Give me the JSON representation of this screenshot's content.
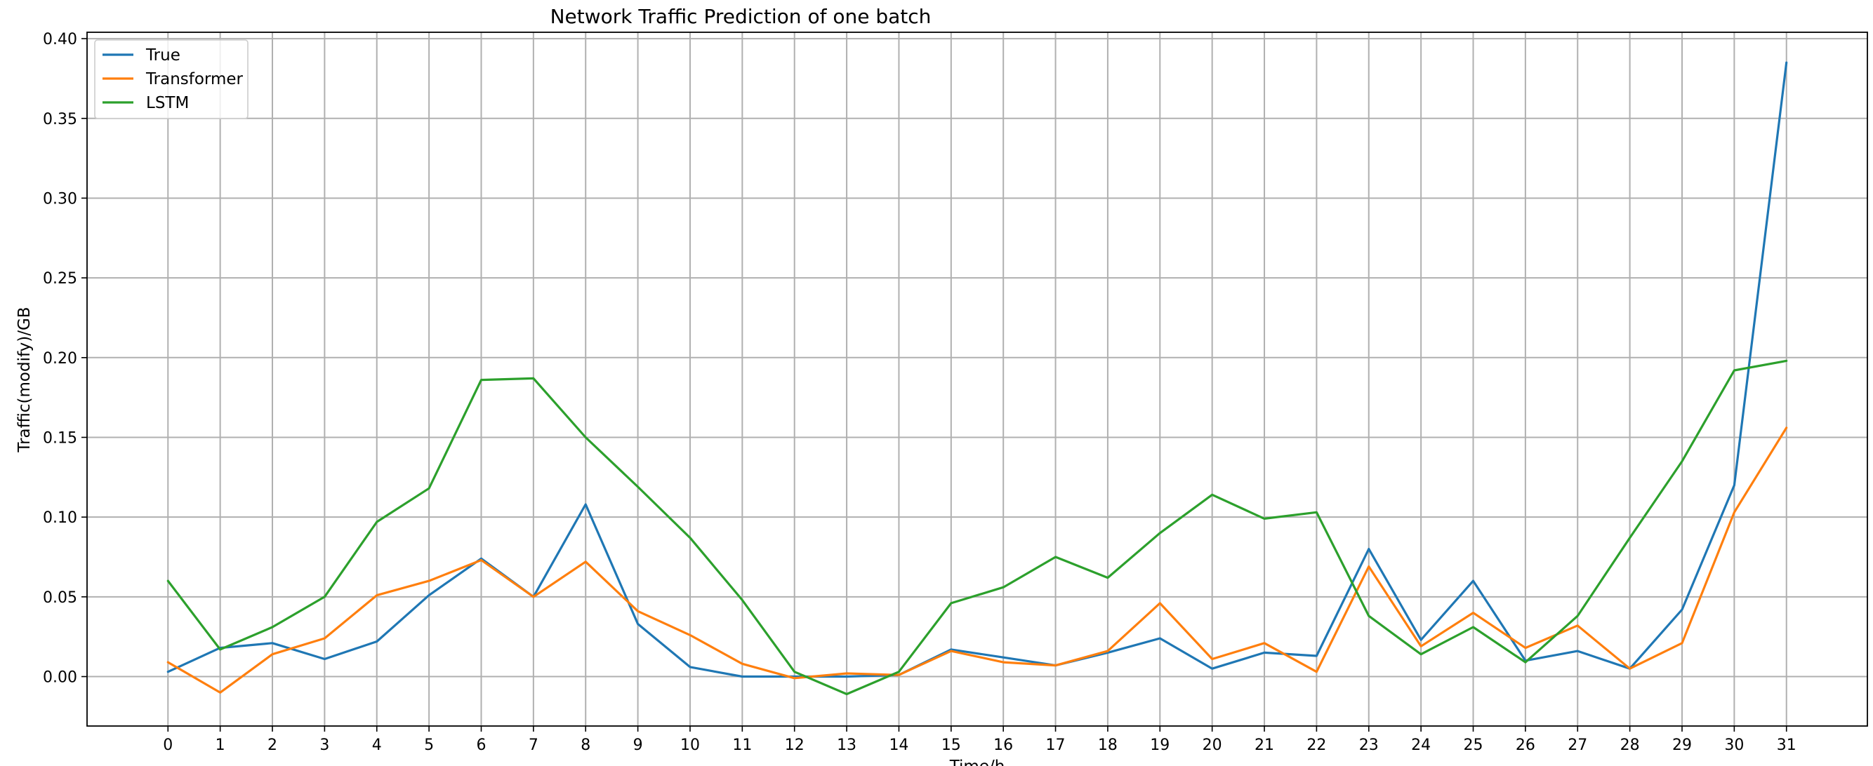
{
  "chart_data": {
    "type": "line",
    "title": "Network Traffic Prediction of one batch",
    "xlabel": "Time/h",
    "ylabel": "Traffic(modify)/GB",
    "x": [
      0,
      1,
      2,
      3,
      4,
      5,
      6,
      7,
      8,
      9,
      10,
      11,
      12,
      13,
      14,
      15,
      16,
      17,
      18,
      19,
      20,
      21,
      22,
      23,
      24,
      25,
      26,
      27,
      28,
      29,
      30,
      31
    ],
    "xlim": [
      -1.55,
      32.55
    ],
    "ylim": [
      -0.031,
      0.404
    ],
    "yticks": [
      0.0,
      0.05,
      0.1,
      0.15,
      0.2,
      0.25,
      0.3,
      0.35,
      0.4
    ],
    "ytick_labels": [
      "0.00",
      "0.05",
      "0.10",
      "0.15",
      "0.20",
      "0.25",
      "0.30",
      "0.35",
      "0.40"
    ],
    "grid": true,
    "legend_position": "top-left",
    "series": [
      {
        "name": "True",
        "color": "#1f77b4",
        "values": [
          0.003,
          0.018,
          0.021,
          0.011,
          0.022,
          0.051,
          0.074,
          0.05,
          0.108,
          0.033,
          0.006,
          0.0,
          0.0,
          0.0,
          0.001,
          0.017,
          0.012,
          0.007,
          0.015,
          0.024,
          0.005,
          0.015,
          0.013,
          0.08,
          0.023,
          0.06,
          0.01,
          0.016,
          0.005,
          0.042,
          0.12,
          0.385
        ]
      },
      {
        "name": "Transformer",
        "color": "#ff7f0e",
        "values": [
          0.009,
          -0.01,
          0.014,
          0.024,
          0.051,
          0.06,
          0.073,
          0.05,
          0.072,
          0.041,
          0.026,
          0.008,
          -0.001,
          0.002,
          0.001,
          0.016,
          0.009,
          0.007,
          0.016,
          0.046,
          0.011,
          0.021,
          0.003,
          0.069,
          0.019,
          0.04,
          0.018,
          0.032,
          0.005,
          0.021,
          0.103,
          0.156
        ]
      },
      {
        "name": "LSTM",
        "color": "#2ca02c",
        "values": [
          0.06,
          0.017,
          0.031,
          0.05,
          0.097,
          0.118,
          0.186,
          0.187,
          0.15,
          0.119,
          0.087,
          0.048,
          0.003,
          -0.011,
          0.003,
          0.046,
          0.056,
          0.075,
          0.062,
          0.09,
          0.114,
          0.099,
          0.103,
          0.038,
          0.014,
          0.031,
          0.009,
          0.038,
          0.087,
          0.135,
          0.192,
          0.198
        ]
      }
    ]
  }
}
